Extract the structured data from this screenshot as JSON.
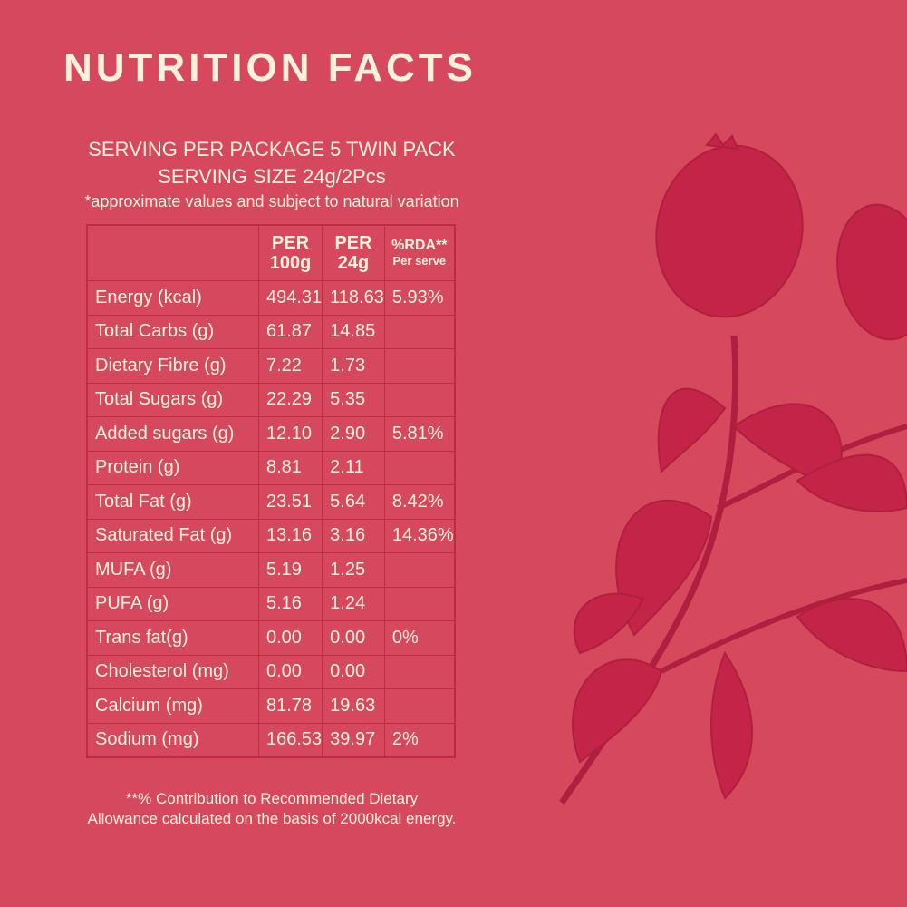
{
  "title": "NUTRITION FACTS",
  "serving": {
    "per_package": "SERVING PER PACKAGE 5 TWIN PACK",
    "size": "SERVING SIZE 24g/2Pcs",
    "note": "*approximate values and subject to natural variation"
  },
  "table": {
    "headers": {
      "per100_line1": "PER",
      "per100_line2": "100g",
      "per24_line1": "PER",
      "per24_line2": "24g",
      "rda_line1": "%RDA**",
      "rda_line2": "Per serve"
    },
    "rows": [
      {
        "name": "Energy (kcal)",
        "per100": "494.31",
        "per24": "118.63",
        "rda": "5.93%"
      },
      {
        "name": "Total Carbs (g)",
        "per100": "61.87",
        "per24": "14.85",
        "rda": ""
      },
      {
        "name": "Dietary Fibre (g)",
        "per100": "7.22",
        "per24": "1.73",
        "rda": ""
      },
      {
        "name": "Total Sugars (g)",
        "per100": "22.29",
        "per24": "5.35",
        "rda": ""
      },
      {
        "name": "Added sugars (g)",
        "per100": "12.10",
        "per24": "2.90",
        "rda": "5.81%"
      },
      {
        "name": "Protein (g)",
        "per100": "8.81",
        "per24": "2.11",
        "rda": ""
      },
      {
        "name": "Total Fat (g)",
        "per100": "23.51",
        "per24": "5.64",
        "rda": "8.42%"
      },
      {
        "name": "Saturated Fat (g)",
        "per100": "13.16",
        "per24": "3.16",
        "rda": "14.36%"
      },
      {
        "name": "MUFA (g)",
        "per100": "5.19",
        "per24": "1.25",
        "rda": ""
      },
      {
        "name": "PUFA (g)",
        "per100": "5.16",
        "per24": "1.24",
        "rda": ""
      },
      {
        "name": "Trans fat(g)",
        "per100": "0.00",
        "per24": "0.00",
        "rda": "0%"
      },
      {
        "name": "Cholesterol (mg)",
        "per100": "0.00",
        "per24": "0.00",
        "rda": ""
      },
      {
        "name": "Calcium (mg)",
        "per100": "81.78",
        "per24": "19.63",
        "rda": ""
      },
      {
        "name": "Sodium (mg)",
        "per100": "166.53",
        "per24": "39.97",
        "rda": "2%"
      }
    ]
  },
  "footnote": {
    "line1": "**% Contribution to Recommended Dietary",
    "line2": "Allowance calculated on the basis of 2000kcal energy."
  },
  "colors": {
    "background": "#d6495c",
    "text": "#fbf1dc",
    "lines": "#c02a48",
    "illustration": "#c42447"
  },
  "illustration": "berry-branch-engraving"
}
